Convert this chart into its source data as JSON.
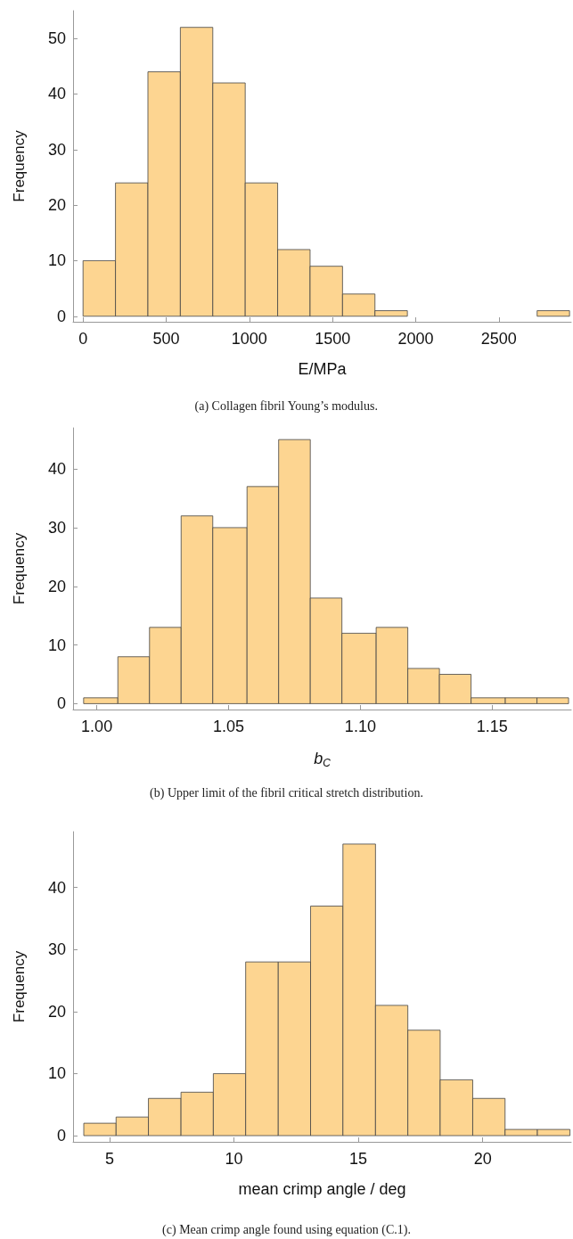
{
  "chart_data": [
    {
      "type": "histogram",
      "xlabel": "E/MPa",
      "ylabel": "Frequency",
      "color": "#fdd591",
      "bins": [
        0,
        195,
        390,
        585,
        780,
        975,
        1170,
        1365,
        1560,
        1755,
        1950,
        2145,
        2340,
        2535,
        2730,
        2925
      ],
      "values": [
        10,
        24,
        44,
        52,
        42,
        24,
        12,
        9,
        4,
        1,
        0,
        0,
        0,
        0,
        1
      ],
      "xlim": [
        -60,
        2935
      ],
      "xticks": [
        0,
        500,
        1000,
        1500,
        2000,
        2500
      ],
      "ylim": [
        -1,
        55
      ],
      "yticks": [
        0,
        10,
        20,
        30,
        40,
        50
      ],
      "annotations": [
        "(a) Collagen fibril Young’s modulus."
      ]
    },
    {
      "type": "histogram",
      "xlabel": "b$_{C}$",
      "ylabel": "Frequency",
      "color": "#fdd591",
      "bins": [
        0.995,
        1.008,
        1.02,
        1.032,
        1.044,
        1.057,
        1.069,
        1.081,
        1.093,
        1.106,
        1.118,
        1.13,
        1.142,
        1.155,
        1.167,
        1.179
      ],
      "values": [
        1,
        8,
        13,
        32,
        30,
        37,
        45,
        18,
        12,
        13,
        6,
        5,
        1,
        1,
        1
      ],
      "xlim": [
        0.991,
        1.18
      ],
      "xticks": [
        {
          "value": 1,
          "label": "1.00"
        },
        {
          "value": 1.05,
          "label": "1.05"
        },
        {
          "value": 1.1,
          "label": "1.10"
        },
        {
          "value": 1.15,
          "label": "1.15"
        }
      ],
      "ylim": [
        -1,
        47
      ],
      "yticks": [
        0,
        10,
        20,
        30,
        40
      ],
      "annotations": [
        "(b) Upper limit of the fibril critical stretch distribution."
      ]
    },
    {
      "type": "histogram",
      "xlabel": "mean crimp angle / deg",
      "ylabel": "Frequency",
      "color": "#fdd591",
      "bins": [
        3.96,
        5.26,
        6.56,
        7.87,
        9.17,
        10.47,
        11.78,
        13.08,
        14.38,
        15.69,
        16.99,
        18.29,
        19.6,
        20.9,
        22.2,
        23.51
      ],
      "values": [
        2,
        3,
        6,
        7,
        10,
        28,
        28,
        37,
        47,
        21,
        17,
        9,
        6,
        1,
        1
      ],
      "xlim": [
        3.53,
        23.56
      ],
      "xticks": [
        5,
        10,
        15,
        20
      ],
      "ylim": [
        -1,
        49
      ],
      "yticks": [
        0,
        10,
        20,
        30,
        40
      ],
      "annotations": [
        "(c) Mean crimp angle found using equation (C.1)."
      ]
    }
  ]
}
